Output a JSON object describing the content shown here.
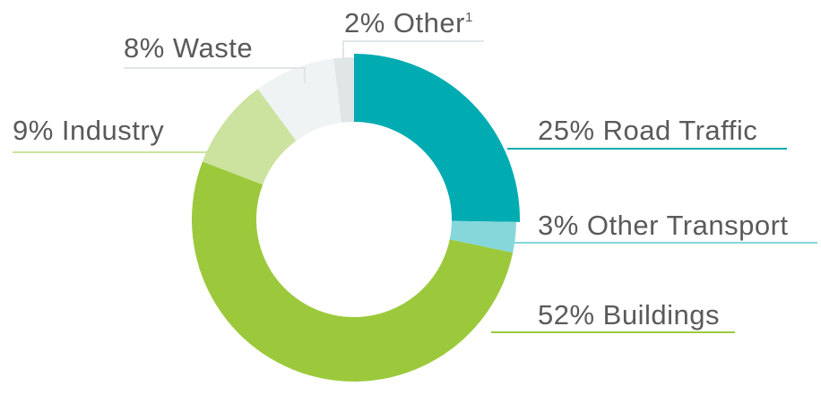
{
  "chart_data": {
    "type": "pie",
    "donut": true,
    "slices": [
      {
        "label": "25% Road Traffic",
        "value": 25,
        "color": "#00abb2"
      },
      {
        "label": "3% Other Transport",
        "value": 3,
        "color": "#85d7da"
      },
      {
        "label": "52% Buildings",
        "value": 52,
        "color": "#9cc93c"
      },
      {
        "label": "9% Industry",
        "value": 9,
        "color": "#cbe39f"
      },
      {
        "label": "8% Waste",
        "value": 8,
        "color": "#eff3f3"
      },
      {
        "label": "2% Other",
        "label_superscript": "1",
        "value": 2,
        "color": "#e0e6e6"
      }
    ],
    "legend": "leader-line labels around the ring"
  }
}
